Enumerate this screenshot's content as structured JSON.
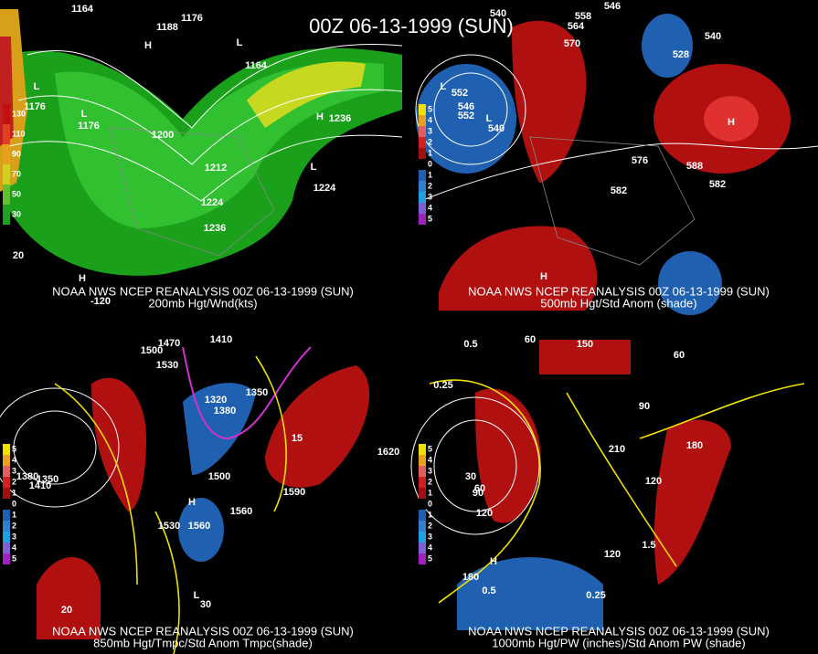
{
  "title": "00Z 06-13-1999 (SUN)",
  "panels": [
    {
      "caption": "NOAA NWS NCEP REANALYSIS 00Z 06-13-1999 (SUN)",
      "subcaption": "200mb Hgt/Wnd(kts)",
      "legend": [
        "130",
        "110",
        "90",
        "70",
        "50",
        "30"
      ],
      "labels": [
        "1164",
        "1176",
        "1188",
        "1176",
        "1164",
        "1176",
        "1200",
        "1212",
        "1224",
        "1236",
        "1236",
        "1224",
        "H",
        "L",
        "L",
        "L",
        "H",
        "L",
        "H",
        "-120",
        "20"
      ]
    },
    {
      "caption": "NOAA NWS NCEP REANALYSIS 00Z 06-13-1999 (SUN)",
      "subcaption": "500mb Hgt/Std Anom (shade)",
      "legend": [
        "5",
        "4",
        "3",
        "2",
        "1",
        "0",
        "1",
        "2",
        "3",
        "4",
        "5"
      ],
      "labels": [
        "540",
        "558",
        "546",
        "540",
        "552",
        "570",
        "564",
        "546",
        "552",
        "540",
        "576",
        "588",
        "582",
        "582",
        "H",
        "L",
        "H",
        "L",
        "528"
      ]
    },
    {
      "caption": "NOAA NWS NCEP REANALYSIS 00Z 06-13-1999 (SUN)",
      "subcaption": "850mb Hgt/Tmpc/Std Anom Tmpc(shade)",
      "legend": [
        "5",
        "4",
        "3",
        "2",
        "1",
        "0",
        "1",
        "2",
        "3",
        "4",
        "5"
      ],
      "labels": [
        "1470",
        "1500",
        "1410",
        "1530",
        "1350",
        "1380",
        "1320",
        "1500",
        "1560",
        "1530",
        "1560",
        "1590",
        "1620",
        "1410",
        "1380",
        "1350",
        "20",
        "30",
        "15",
        "H",
        "L"
      ]
    },
    {
      "caption": "NOAA NWS NCEP REANALYSIS 00Z 06-13-1999 (SUN)",
      "subcaption": "1000mb Hgt/PW (inches)/Std Anom PW (shade)",
      "legend": [
        "5",
        "4",
        "3",
        "2",
        "1",
        "0",
        "1",
        "2",
        "3",
        "4",
        "5"
      ],
      "labels": [
        "0.5",
        "60",
        "150",
        "60",
        "0.25",
        "90",
        "210",
        "120",
        "180",
        "120",
        "1.5",
        "0.5",
        "0.25",
        "30",
        "60",
        "90",
        "180",
        "120",
        "H"
      ]
    }
  ]
}
